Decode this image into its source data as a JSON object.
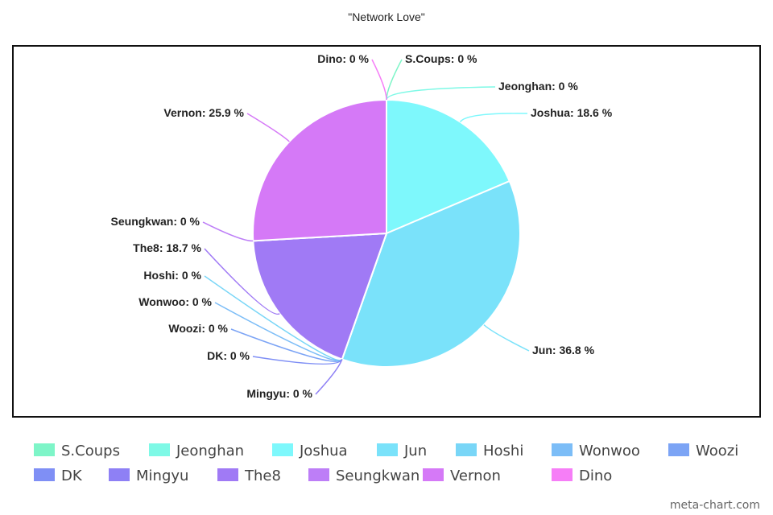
{
  "chart_data": {
    "type": "pie",
    "title": "\"Network Love\"",
    "categories": [
      "S.Coups",
      "Jeonghan",
      "Joshua",
      "Jun",
      "Hoshi",
      "Wonwoo",
      "Woozi",
      "DK",
      "Mingyu",
      "The8",
      "Seungkwan",
      "Vernon",
      "Dino"
    ],
    "values": [
      0,
      0,
      18.6,
      36.8,
      0,
      0,
      0,
      0,
      0,
      18.7,
      0,
      25.9,
      0
    ],
    "value_labels": [
      "S.Coups: 0 %",
      "Jeonghan: 0 %",
      "Joshua: 18.6 %",
      "Jun: 36.8 %",
      "Hoshi: 0 %",
      "Wonwoo: 0 %",
      "Woozi: 0 %",
      "DK: 0 %",
      "Mingyu: 0 %",
      "The8: 18.7 %",
      "Seungkwan: 0 %",
      "Vernon: 25.9 %",
      "Dino: 0 %"
    ],
    "colors": [
      "#7ef5c8",
      "#7ef9e6",
      "#7ef8fc",
      "#7ae2fa",
      "#79d6f7",
      "#7cbdf7",
      "#7ca4f5",
      "#7f8ff5",
      "#8e80f5",
      "#a07af5",
      "#bd7ef7",
      "#d579f7",
      "#f67ef7"
    ],
    "watermark": "meta-chart.com"
  }
}
